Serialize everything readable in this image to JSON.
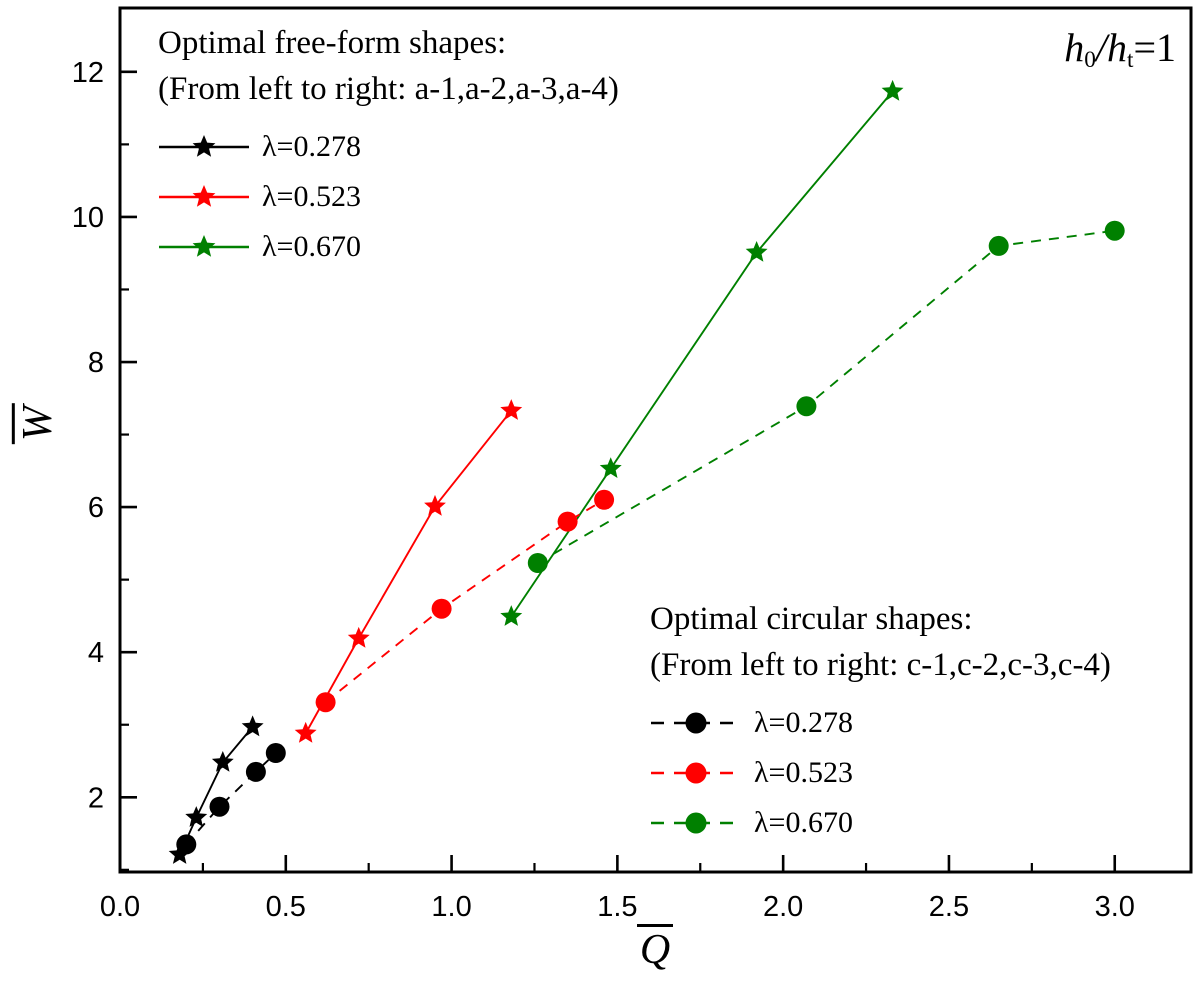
{
  "chart_data": {
    "type": "scatter-line",
    "xlabel": "Q",
    "ylabel": "W",
    "axis_labels_have_overbar": true,
    "xlim": [
      0,
      3.23
    ],
    "ylim": [
      0.97,
      12.88
    ],
    "x_ticks": [
      0.0,
      0.5,
      1.0,
      1.5,
      2.0,
      2.5,
      3.0
    ],
    "x_tick_labels": [
      "0.0",
      "0.5",
      "1.0",
      "1.5",
      "2.0",
      "2.5",
      "3.0"
    ],
    "x_minor_ticks": [
      0.25,
      0.75,
      1.25,
      1.75,
      2.25,
      2.75
    ],
    "y_ticks": [
      2,
      4,
      6,
      8,
      10,
      12
    ],
    "y_tick_labels": [
      "2",
      "4",
      "6",
      "8",
      "10",
      "12"
    ],
    "y_minor_ticks": [
      1,
      3,
      5,
      7,
      9,
      11
    ],
    "grid": false,
    "frame": true,
    "groups": [
      {
        "title": "Optimal free-form shapes:",
        "subtitle": "(From left to right: a-1,a-2,a-3,a-4)",
        "marker": "star",
        "line_style": "solid",
        "series": [
          {
            "label": "λ=0.278",
            "color": "#000000",
            "points": [
              [
                0.18,
                1.21
              ],
              [
                0.23,
                1.72
              ],
              [
                0.31,
                2.48
              ],
              [
                0.4,
                2.97
              ]
            ]
          },
          {
            "label": "λ=0.523",
            "color": "#ff0000",
            "points": [
              [
                0.56,
                2.88
              ],
              [
                0.72,
                4.19
              ],
              [
                0.95,
                6.01
              ],
              [
                1.18,
                7.33
              ]
            ]
          },
          {
            "label": "λ=0.670",
            "color": "#008000",
            "points": [
              [
                1.18,
                4.49
              ],
              [
                1.48,
                6.53
              ],
              [
                1.92,
                9.51
              ],
              [
                2.33,
                11.73
              ]
            ]
          }
        ]
      },
      {
        "title": "Optimal circular shapes:",
        "subtitle": "(From left to right: c-1,c-2,c-3,c-4)",
        "marker": "circle",
        "line_style": "dashed",
        "series": [
          {
            "label": "λ=0.278",
            "color": "#000000",
            "points": [
              [
                0.2,
                1.35
              ],
              [
                0.3,
                1.87
              ],
              [
                0.41,
                2.35
              ],
              [
                0.47,
                2.61
              ]
            ]
          },
          {
            "label": "λ=0.523",
            "color": "#ff0000",
            "points": [
              [
                0.62,
                3.31
              ],
              [
                0.97,
                4.6
              ],
              [
                1.35,
                5.8
              ],
              [
                1.46,
                6.1
              ]
            ]
          },
          {
            "label": "λ=0.670",
            "color": "#008000",
            "points": [
              [
                1.26,
                5.23
              ],
              [
                2.07,
                7.39
              ],
              [
                2.65,
                9.6
              ],
              [
                3.0,
                9.81
              ]
            ]
          }
        ]
      }
    ],
    "annotation": {
      "num_base": "h",
      "num_sub": "0",
      "divider": "/",
      "den_base": "h",
      "den_sub": "t",
      "equals": "=1"
    }
  }
}
